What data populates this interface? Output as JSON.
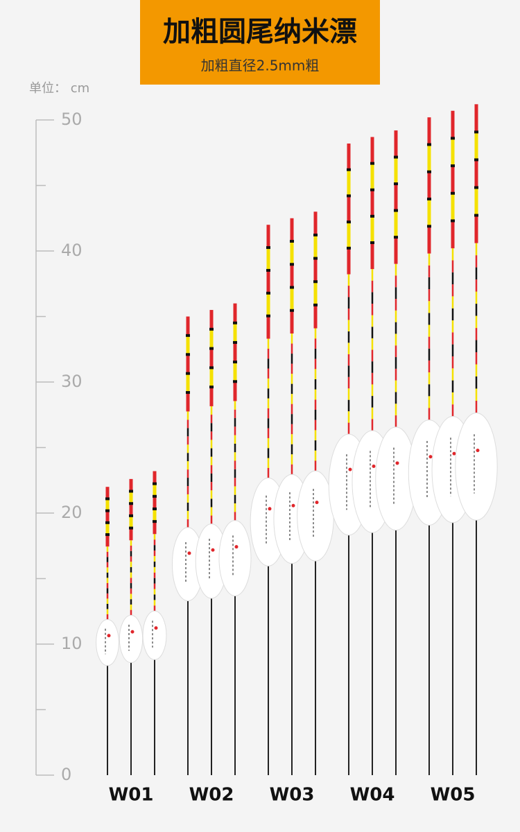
{
  "chart_data": {
    "type": "float",
    "title": "加粗圆尾纳米漂",
    "subtitle": "加粗直径2.5mm粗",
    "unit_label": "单位： cm",
    "categories": [
      "W01",
      "W02",
      "W03",
      "W04",
      "W05"
    ],
    "values": [
      [
        22,
        22.6,
        23.2
      ],
      [
        35,
        35.5,
        36
      ],
      [
        42,
        42.5,
        43
      ],
      [
        48.2,
        48.7,
        49.2
      ],
      [
        50.2,
        50.7,
        51.2
      ]
    ],
    "ylim": [
      0,
      50
    ],
    "yticks": [
      0,
      10,
      20,
      30,
      40,
      50
    ],
    "minor_yticks": [
      5,
      15,
      25,
      35,
      45
    ],
    "header_color": "#f39800"
  }
}
